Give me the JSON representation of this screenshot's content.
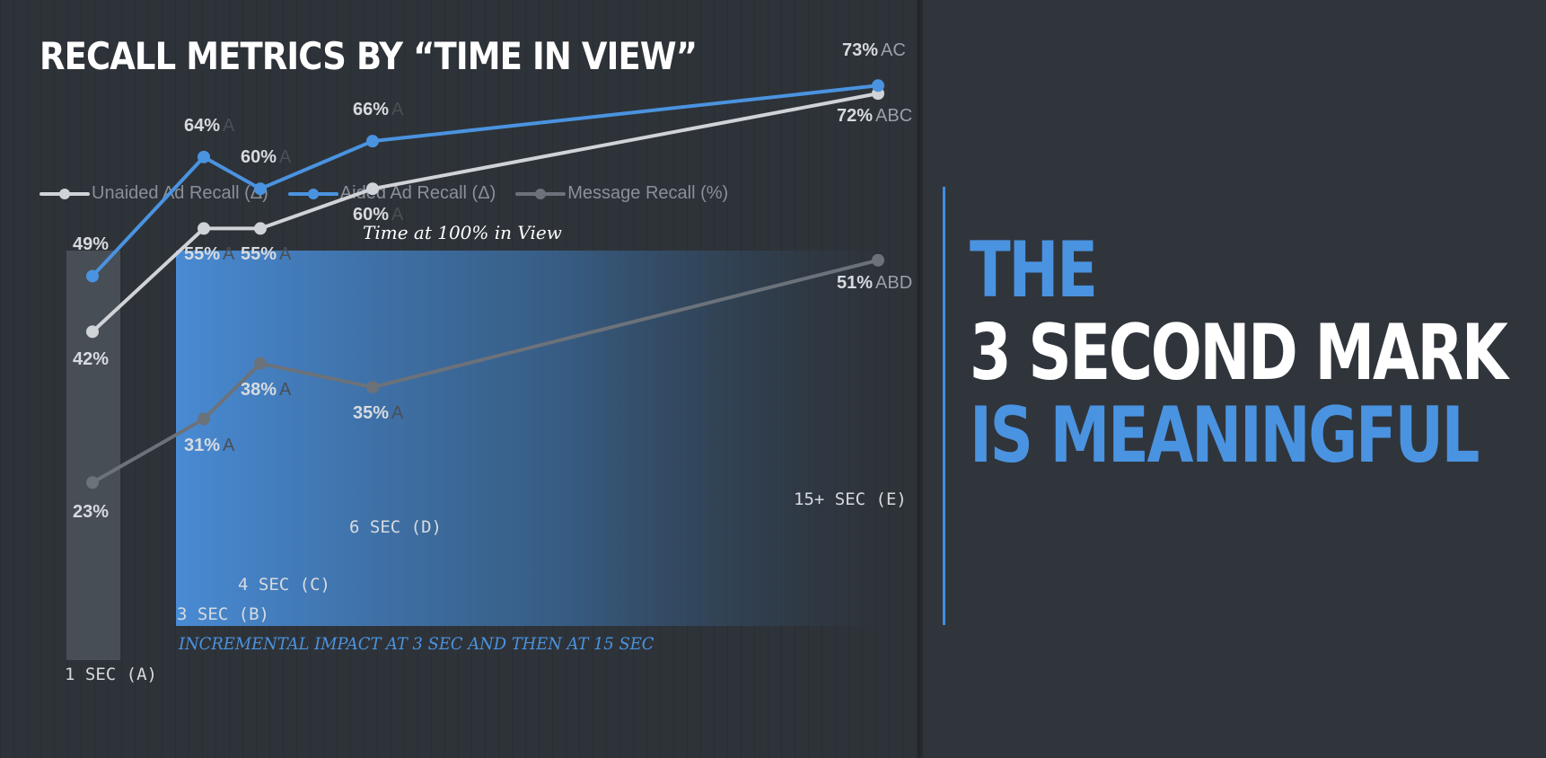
{
  "title": "RECALL METRICS BY “TIME IN VIEW”",
  "legend": [
    {
      "name": "Unaided Ad Recall (Δ)",
      "color": "#d0d3d7"
    },
    {
      "name": "Aided Ad Recall (Δ)",
      "color": "#4a93e0"
    },
    {
      "name": "Message Recall (%)",
      "color": "#6c727a"
    }
  ],
  "time_caption": "Time at 100% in View",
  "footnote": "INCREMENTAL IMPACT AT 3 SEC AND THEN AT 15 SEC",
  "headline": {
    "line1": "THE",
    "line2": "3 SECOND MARK",
    "line3": "IS MEANINGFUL"
  },
  "colors": {
    "accent": "#4a93e0",
    "background": "#2e3339",
    "unaided": "#d0d3d7",
    "message": "#6c727a"
  },
  "chart_data": {
    "type": "line",
    "x_label_text": [
      "1 SEC (A)",
      "3 SEC (B)",
      "4 SEC (C)",
      "6 SEC (D)",
      "15+ SEC (E)"
    ],
    "x": [
      1,
      3,
      4,
      6,
      15
    ],
    "series": [
      {
        "name": "Unaided Ad Recall (Δ)",
        "values": [
          42,
          55,
          55,
          60,
          72
        ],
        "labels": [
          "42%",
          "55%",
          "55%",
          "60%",
          "72%"
        ],
        "significance": [
          "",
          "A",
          "A",
          "A",
          "ABC"
        ]
      },
      {
        "name": "Aided Ad Recall (Δ)",
        "values": [
          49,
          64,
          60,
          66,
          73
        ],
        "labels": [
          "49%",
          "64%",
          "60%",
          "66%",
          "73%"
        ],
        "significance": [
          "",
          "A",
          "A",
          "A",
          "AC"
        ]
      },
      {
        "name": "Message Recall (%)",
        "values": [
          23,
          31,
          38,
          35,
          51
        ],
        "labels": [
          "23%",
          "31%",
          "38%",
          "35%",
          "51%"
        ],
        "significance": [
          "",
          "A",
          "A",
          "A",
          "ABD"
        ]
      }
    ]
  }
}
